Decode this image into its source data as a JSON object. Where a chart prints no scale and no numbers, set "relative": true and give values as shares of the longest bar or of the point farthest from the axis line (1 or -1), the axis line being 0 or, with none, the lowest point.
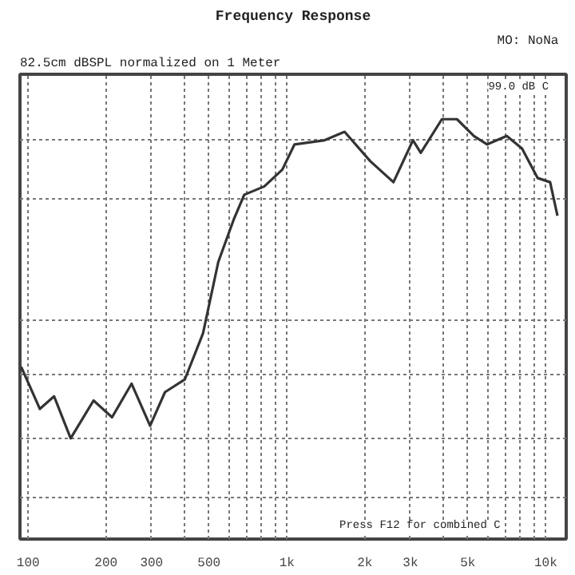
{
  "chart_data": {
    "type": "line",
    "title": "Frequency Response",
    "subtitle": "82.5cm dBSPL normalized on 1 Meter",
    "annotations": [
      "MO:  NoNa",
      "99.0 dB C",
      "Press F12 for combined C"
    ],
    "relative": true,
    "log": "x",
    "grid": true,
    "line_style": "solid",
    "marker": "none",
    "xlim": [
      93,
      12000
    ],
    "xticks": [
      100,
      200,
      300,
      {
        "value": 400,
        "label": null
      },
      500,
      {
        "value": 600,
        "label": null
      },
      {
        "value": 700,
        "label": null
      },
      {
        "value": 800,
        "label": null
      },
      {
        "value": 900,
        "label": null
      },
      {
        "value": 1000,
        "label": "1k"
      },
      {
        "value": 2000,
        "label": "2k"
      },
      {
        "value": 3000,
        "label": "3k"
      },
      {
        "value": 4000,
        "label": null
      },
      {
        "value": 5000,
        "label": "5k"
      },
      {
        "value": 6000,
        "label": null
      },
      {
        "value": 7000,
        "label": null
      },
      {
        "value": 8000,
        "label": null
      },
      {
        "value": 9000,
        "label": null
      },
      {
        "value": 10000,
        "label": "10k"
      }
    ],
    "x": [
      94,
      111,
      126,
      146,
      179,
      211,
      251,
      296,
      338,
      403,
      474,
      543,
      622,
      684,
      818,
      960,
      1070,
      1400,
      1670,
      2100,
      2580,
      3070,
      3290,
      3970,
      4540,
      5280,
      5940,
      7070,
      8100,
      9300,
      10400,
      11100
    ],
    "series": [
      {
        "color": "#333333",
        "values": [
          0.41,
          0.31,
          0.34,
          0.24,
          0.33,
          0.29,
          0.37,
          0.27,
          0.35,
          0.38,
          0.49,
          0.66,
          0.76,
          0.82,
          0.84,
          0.88,
          0.94,
          0.95,
          0.97,
          0.9,
          0.85,
          0.95,
          0.92,
          1,
          1,
          0.96,
          0.94,
          0.96,
          0.93,
          0.86,
          0.85,
          0.77
        ]
      }
    ]
  }
}
